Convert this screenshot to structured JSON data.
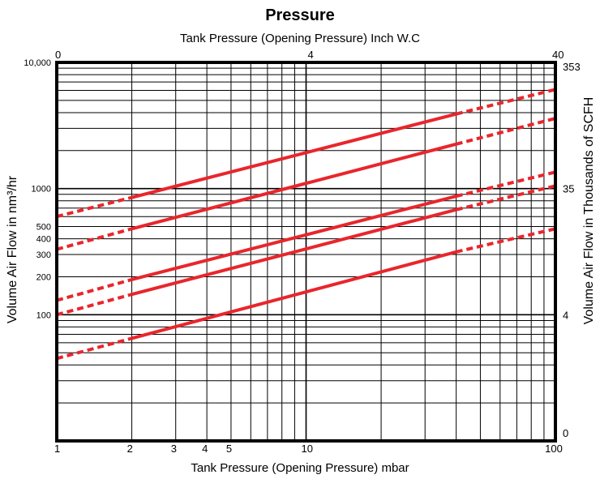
{
  "chart_data": {
    "type": "line",
    "title": "Pressure",
    "top_axis_label": "Tank Pressure (Opening Pressure) Inch W.C",
    "xlabel": "Tank Pressure (Opening Pressure) mbar",
    "ylabel_left": "Volume Air Flow in nm³/hr",
    "ylabel_right": "Volume Air Flow in Thousands of SCFH",
    "x_scale": "log",
    "y_scale": "log",
    "xlim": [
      1,
      100
    ],
    "ylim": [
      10,
      10000
    ],
    "grid": true,
    "colors": {
      "series": "#e8262c",
      "grid": "#000000",
      "frame": "#000000"
    },
    "x_ticks": [
      {
        "value": 1,
        "label": "1"
      },
      {
        "value": 2,
        "label": "2"
      },
      {
        "value": 3,
        "label": "3"
      },
      {
        "value": 4,
        "label": "4"
      },
      {
        "value": 5,
        "label": "5"
      },
      {
        "value": 10,
        "label": "10"
      },
      {
        "value": 100,
        "label": "100"
      }
    ],
    "top_ticks": [
      {
        "value": 1,
        "label": "0"
      },
      {
        "value": 10,
        "label": "4"
      },
      {
        "value": 100,
        "label": "40"
      }
    ],
    "y_left_ticks": [
      {
        "value": 10000,
        "label": "10,000"
      },
      {
        "value": 1000,
        "label": "1000"
      },
      {
        "value": 500,
        "label": "500"
      },
      {
        "value": 400,
        "label": "400"
      },
      {
        "value": 300,
        "label": "300"
      },
      {
        "value": 200,
        "label": "200"
      },
      {
        "value": 100,
        "label": "100"
      }
    ],
    "y_right_ticks": [
      {
        "value": 10000,
        "label": "353"
      },
      {
        "value": 1000,
        "label": "35"
      },
      {
        "value": 100,
        "label": "4"
      },
      {
        "value": 10,
        "label": "0"
      }
    ],
    "series": [
      {
        "x": [
          1,
          2,
          40,
          100
        ],
        "y": [
          600,
          850,
          3900,
          6100
        ],
        "solid_range": [
          2,
          40
        ]
      },
      {
        "x": [
          1,
          2,
          40,
          100
        ],
        "y": [
          330,
          480,
          2250,
          3600
        ],
        "solid_range": [
          2,
          40
        ]
      },
      {
        "x": [
          1,
          2,
          40,
          100
        ],
        "y": [
          130,
          190,
          870,
          1350
        ],
        "solid_range": [
          2,
          40
        ]
      },
      {
        "x": [
          1,
          2,
          40,
          100
        ],
        "y": [
          100,
          145,
          680,
          1050
        ],
        "solid_range": [
          2,
          40
        ]
      },
      {
        "x": [
          1,
          2,
          40,
          100
        ],
        "y": [
          45,
          65,
          315,
          480
        ],
        "solid_range": [
          2,
          40
        ]
      }
    ]
  }
}
